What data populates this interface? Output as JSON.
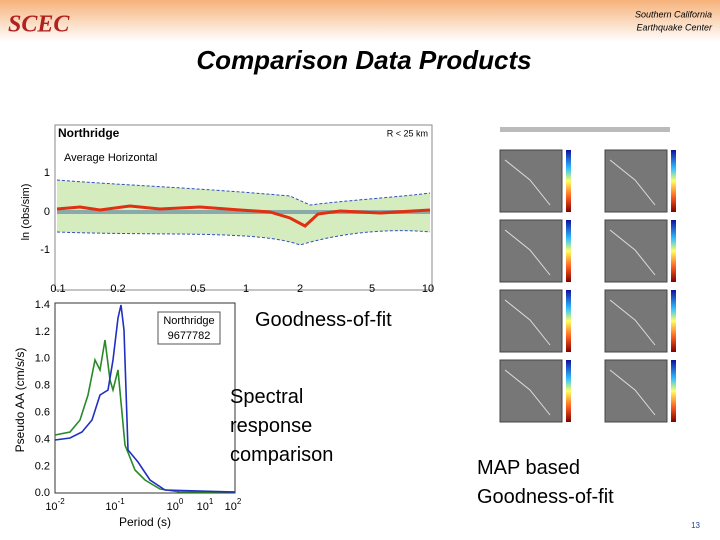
{
  "header": {
    "logo": "SCEC",
    "org_line1": "Southern California",
    "org_line2": "Earthquake Center"
  },
  "title": "Comparison Data Products",
  "gof_plot": {
    "event": "Northridge",
    "distance": "R < 25 km",
    "component": "Average Horizontal",
    "ylabel": "ln (obs/sim)",
    "yticks": [
      "1",
      "0",
      "-1"
    ],
    "xticks": [
      "0.1",
      "0.2",
      "0.5",
      "1",
      "2",
      "5",
      "10"
    ]
  },
  "spectral_plot": {
    "legend_line1": "Northridge",
    "legend_line2": "9677782",
    "ylabel": "Pseudo AA (cm/s/s)",
    "xlabel": "Period (s)",
    "yticks": [
      "1.4",
      "1.2",
      "1.0",
      "0.8",
      "0.6",
      "0.4",
      "0.2",
      "0.0"
    ],
    "xticks": [
      {
        "base": "10",
        "exp": "-2"
      },
      {
        "base": "10",
        "exp": "-1"
      },
      {
        "base": "10",
        "exp": "0"
      },
      {
        "base": "10",
        "exp": "1"
      },
      {
        "base": "10",
        "exp": "2"
      }
    ]
  },
  "captions": {
    "gof": "Goodness-of-fit",
    "spectral": "Spectral response comparison",
    "map": "MAP based Goodness-of-fit"
  },
  "page_number": "13"
}
